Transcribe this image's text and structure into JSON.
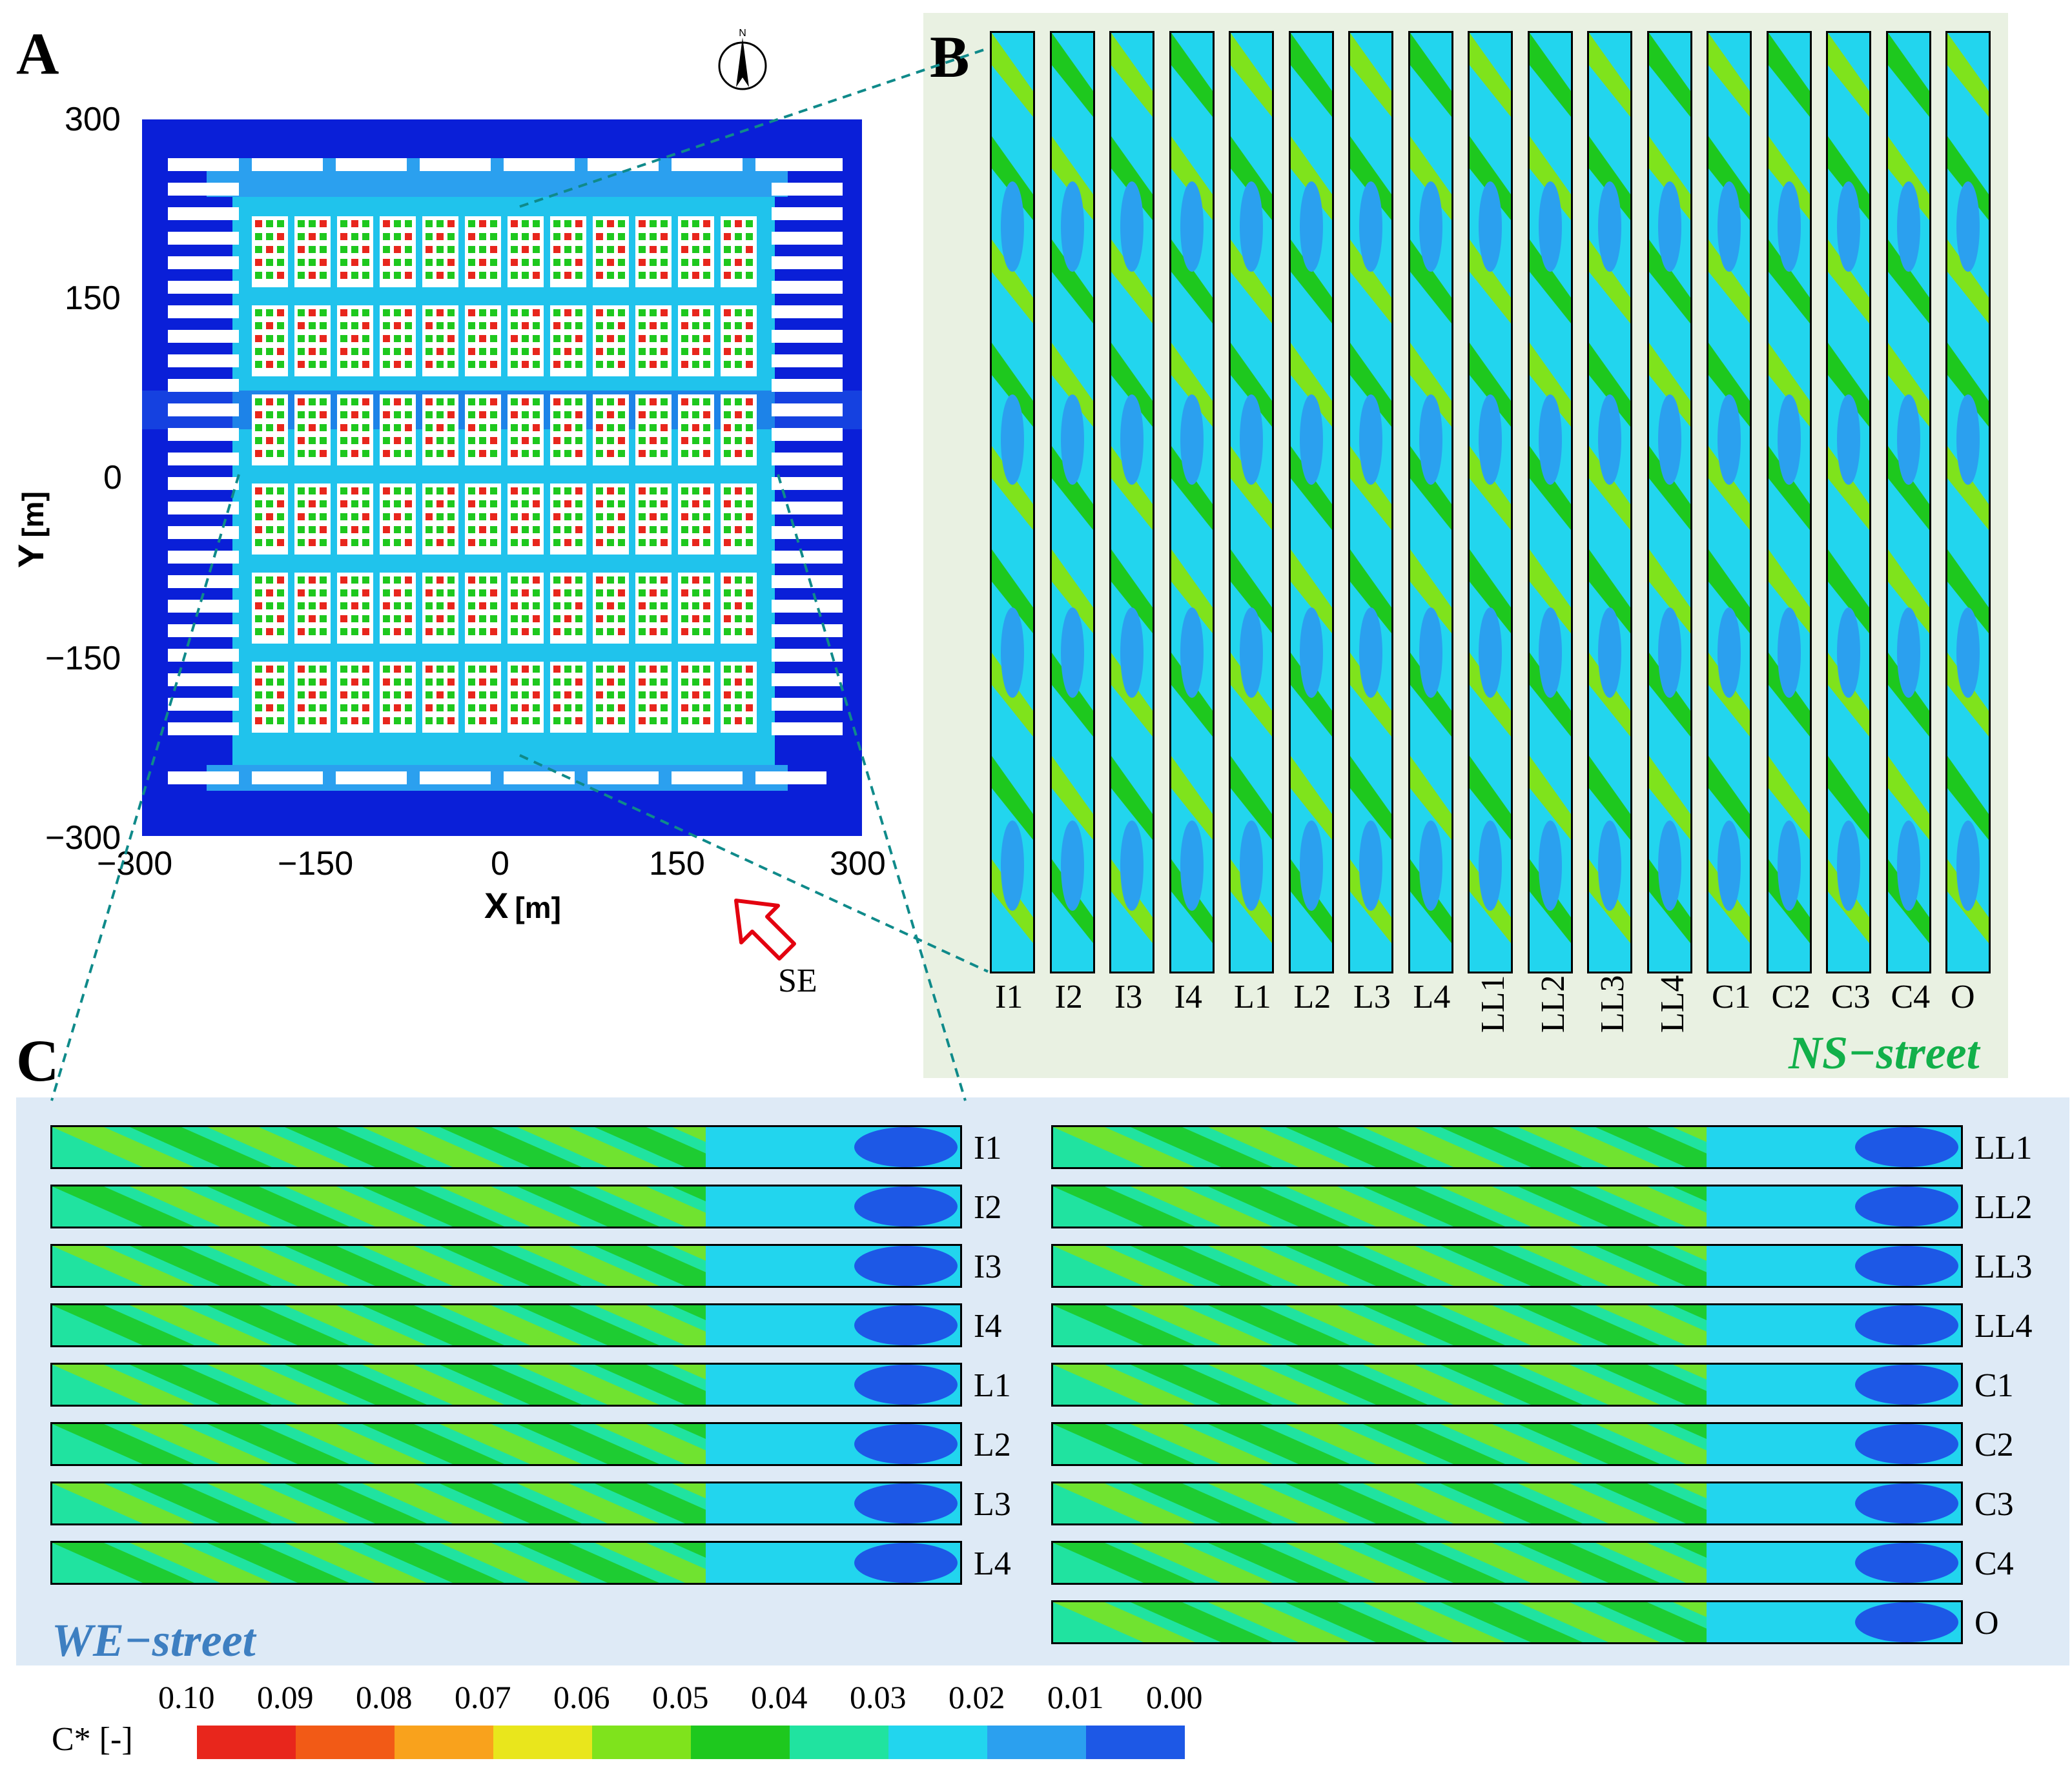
{
  "panels": {
    "a": "A",
    "b": "B",
    "c": "C"
  },
  "compass": {
    "north_label": "N",
    "icon": "north-arrow-icon"
  },
  "panelA": {
    "y_ticks": [
      "300",
      "150",
      "0",
      "−150",
      "−300"
    ],
    "x_ticks": [
      "−300",
      "−150",
      "0",
      "150",
      "300"
    ],
    "x_title": "X",
    "x_unit": "[m]",
    "y_title": "Y",
    "y_unit": "[m]",
    "wind_label": "SE",
    "wind_icon": "wind-direction-arrow-icon",
    "wind_color": "#e3000f",
    "domain_color": "#0a1fd8"
  },
  "panelB": {
    "title": "NS−street",
    "title_color": "#12b04a",
    "labels": [
      "I1",
      "I2",
      "I3",
      "I4",
      "L1",
      "L2",
      "L3",
      "L4",
      "LL1",
      "LL2",
      "LL3",
      "LL4",
      "C1",
      "C2",
      "C3",
      "C4",
      "O"
    ]
  },
  "panelC": {
    "title": "WE−street",
    "title_color": "#3e7fc1",
    "left_labels": [
      "I1",
      "I2",
      "I3",
      "I4",
      "L1",
      "L2",
      "L3",
      "L4"
    ],
    "right_labels": [
      "LL1",
      "LL2",
      "LL3",
      "LL4",
      "C1",
      "C2",
      "C3",
      "C4",
      "O"
    ]
  },
  "legend": {
    "title": "C* [-]",
    "ticks": [
      "0.10",
      "0.09",
      "0.08",
      "0.07",
      "0.06",
      "0.05",
      "0.04",
      "0.03",
      "0.02",
      "0.01",
      "0.00"
    ],
    "colors": [
      "#e8261c",
      "#f25a16",
      "#f9a21c",
      "#e9e61c",
      "#7fe31c",
      "#1ec81e",
      "#20e3a0",
      "#22d5ee",
      "#2ba0ef",
      "#1d58e6"
    ]
  }
}
